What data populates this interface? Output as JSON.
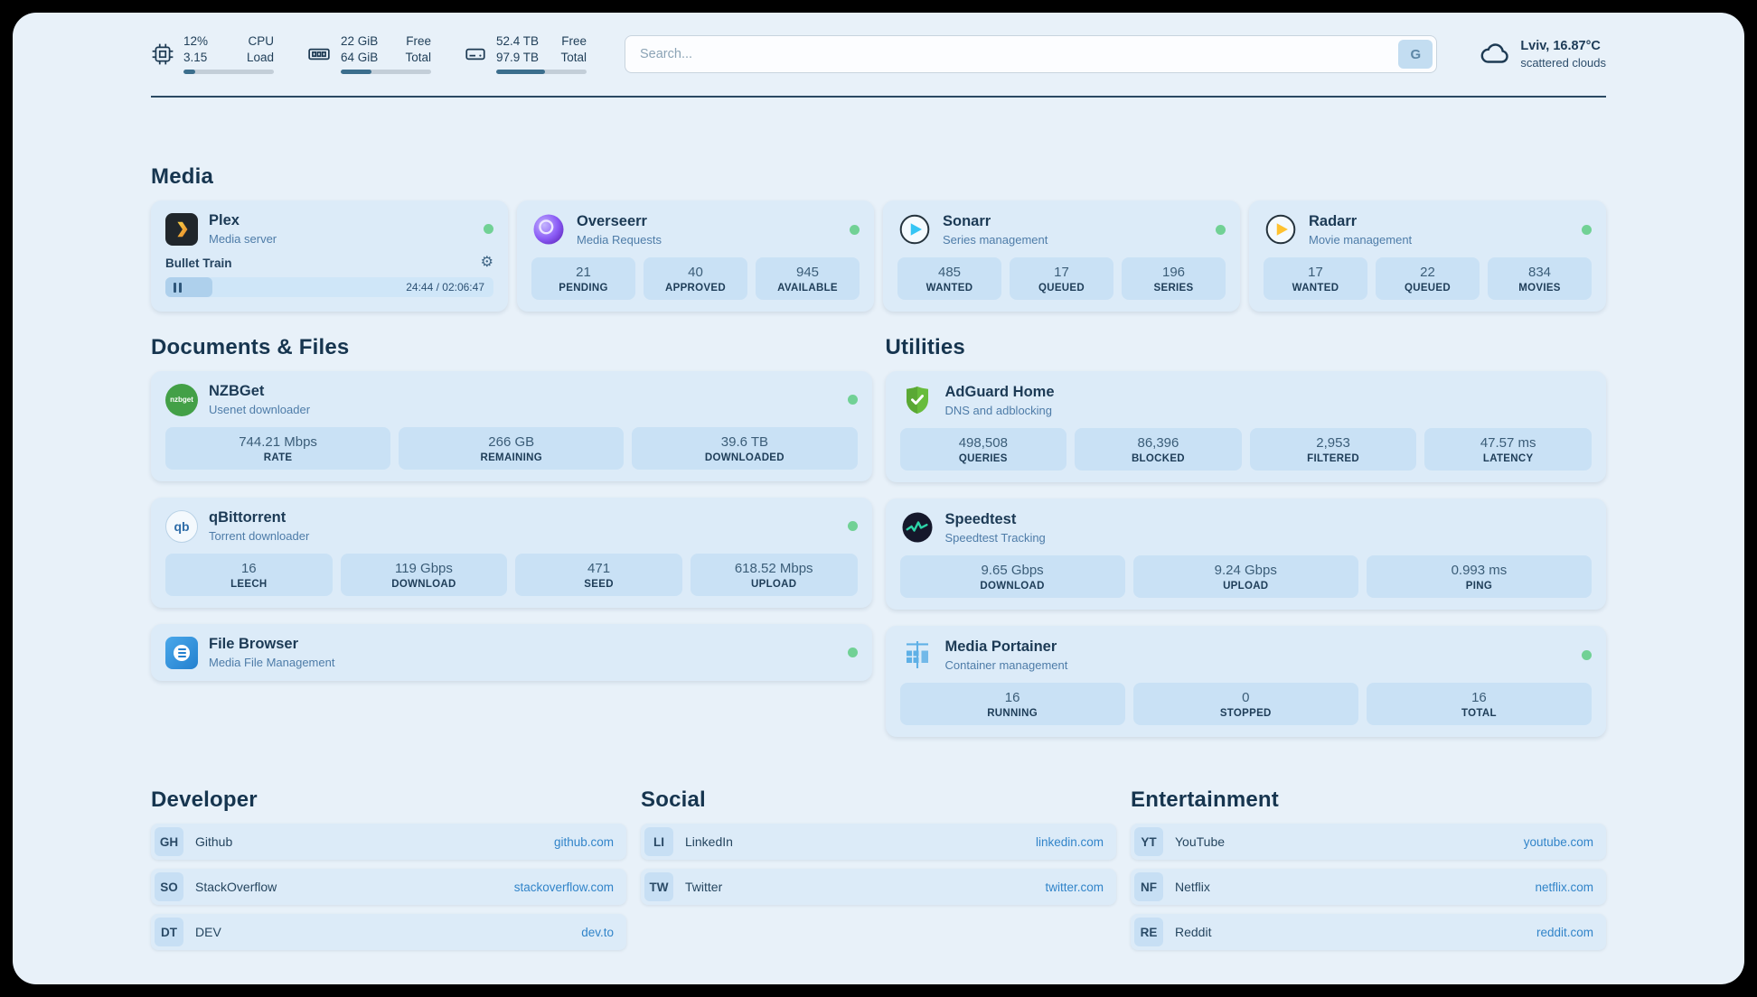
{
  "colors": {
    "status_online": "#71d195",
    "accent_link": "#3184c9",
    "page_bg": "#e8f1f9"
  },
  "icons": {
    "gear": "⚙"
  },
  "topbar": {
    "cpu": {
      "value": "12%",
      "load": "3.15",
      "label_top": "CPU",
      "label_bottom": "Load",
      "progress": 13
    },
    "memory": {
      "free": "22 GiB",
      "total": "64 GiB",
      "label_top": "Free",
      "label_bottom": "Total",
      "progress": 34
    },
    "disk": {
      "free": "52.4 TB",
      "total": "97.9 TB",
      "label_top": "Free",
      "label_bottom": "Total",
      "progress": 54
    },
    "search": {
      "placeholder": "Search...",
      "button_label": "G"
    },
    "weather": {
      "location": "Lviv, 16.87°C",
      "condition": "scattered clouds"
    }
  },
  "media": {
    "title": "Media",
    "plex": {
      "name": "Plex",
      "desc": "Media server",
      "now_playing": "Bullet Train",
      "time": "24:44 / 02:06:47"
    },
    "overseerr": {
      "name": "Overseerr",
      "desc": "Media Requests",
      "stats": [
        {
          "value": "21",
          "label": "PENDING"
        },
        {
          "value": "40",
          "label": "APPROVED"
        },
        {
          "value": "945",
          "label": "AVAILABLE"
        }
      ]
    },
    "sonarr": {
      "name": "Sonarr",
      "desc": "Series management",
      "stats": [
        {
          "value": "485",
          "label": "WANTED"
        },
        {
          "value": "17",
          "label": "QUEUED"
        },
        {
          "value": "196",
          "label": "SERIES"
        }
      ]
    },
    "radarr": {
      "name": "Radarr",
      "desc": "Movie management",
      "stats": [
        {
          "value": "17",
          "label": "WANTED"
        },
        {
          "value": "22",
          "label": "QUEUED"
        },
        {
          "value": "834",
          "label": "MOVIES"
        }
      ]
    }
  },
  "documents": {
    "title": "Documents & Files",
    "nzbget": {
      "name": "NZBGet",
      "desc": "Usenet downloader",
      "icon_label": "nzbget",
      "stats": [
        {
          "value": "744.21 Mbps",
          "label": "RATE"
        },
        {
          "value": "266 GB",
          "label": "REMAINING"
        },
        {
          "value": "39.6 TB",
          "label": "DOWNLOADED"
        }
      ]
    },
    "qbittorrent": {
      "name": "qBittorrent",
      "desc": "Torrent downloader",
      "icon_label": "qb",
      "stats": [
        {
          "value": "16",
          "label": "LEECH"
        },
        {
          "value": "119 Gbps",
          "label": "DOWNLOAD"
        },
        {
          "value": "471",
          "label": "SEED"
        },
        {
          "value": "618.52 Mbps",
          "label": "UPLOAD"
        }
      ]
    },
    "filebrowser": {
      "name": "File Browser",
      "desc": "Media File Management"
    }
  },
  "utilities": {
    "title": "Utilities",
    "adguard": {
      "name": "AdGuard Home",
      "desc": "DNS and adblocking",
      "stats": [
        {
          "value": "498,508",
          "label": "QUERIES"
        },
        {
          "value": "86,396",
          "label": "BLOCKED"
        },
        {
          "value": "2,953",
          "label": "FILTERED"
        },
        {
          "value": "47.57 ms",
          "label": "LATENCY"
        }
      ]
    },
    "speedtest": {
      "name": "Speedtest",
      "desc": "Speedtest Tracking",
      "stats": [
        {
          "value": "9.65 Gbps",
          "label": "DOWNLOAD"
        },
        {
          "value": "9.24 Gbps",
          "label": "UPLOAD"
        },
        {
          "value": "0.993 ms",
          "label": "PING"
        }
      ]
    },
    "portainer": {
      "name": "Media Portainer",
      "desc": "Container management",
      "stats": [
        {
          "value": "16",
          "label": "RUNNING"
        },
        {
          "value": "0",
          "label": "STOPPED"
        },
        {
          "value": "16",
          "label": "TOTAL"
        }
      ]
    }
  },
  "bookmarks": {
    "developer": {
      "title": "Developer",
      "items": [
        {
          "abbr": "GH",
          "name": "Github",
          "url": "github.com"
        },
        {
          "abbr": "SO",
          "name": "StackOverflow",
          "url": "stackoverflow.com"
        },
        {
          "abbr": "DT",
          "name": "DEV",
          "url": "dev.to"
        }
      ]
    },
    "social": {
      "title": "Social",
      "items": [
        {
          "abbr": "LI",
          "name": "LinkedIn",
          "url": "linkedin.com"
        },
        {
          "abbr": "TW",
          "name": "Twitter",
          "url": "twitter.com"
        }
      ]
    },
    "entertainment": {
      "title": "Entertainment",
      "items": [
        {
          "abbr": "YT",
          "name": "YouTube",
          "url": "youtube.com"
        },
        {
          "abbr": "NF",
          "name": "Netflix",
          "url": "netflix.com"
        },
        {
          "abbr": "RE",
          "name": "Reddit",
          "url": "reddit.com"
        }
      ]
    }
  }
}
